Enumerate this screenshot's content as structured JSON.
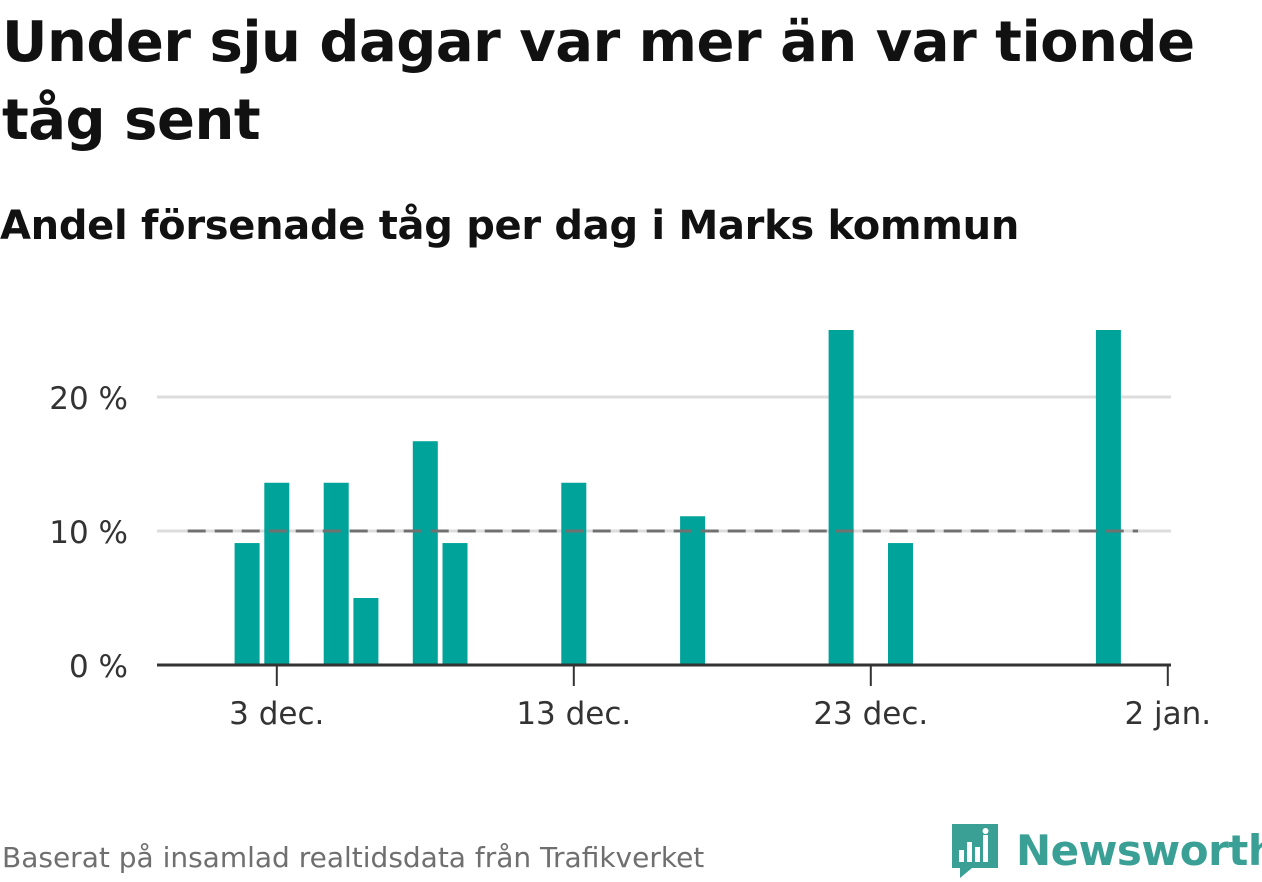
{
  "title": "Under sju dagar var mer än var tionde tåg sent",
  "subtitle": "Andel försenade tåg per dag i Marks kommun",
  "footer": "Baserat på insamlad realtidsdata från Trafikverket",
  "brand": {
    "name": "Newsworthy",
    "icon": "newsworthy-logo-icon"
  },
  "colors": {
    "bar": "#00a39a",
    "grid": "#dddddd",
    "axis": "#333333",
    "reference_line": "#707070",
    "brand": "#3aa095"
  },
  "chart_data": {
    "type": "bar",
    "x_unit": "day",
    "x": [
      "2023-12-02",
      "2023-12-03",
      "2023-12-05",
      "2023-12-06",
      "2023-12-08",
      "2023-12-09",
      "2023-12-13",
      "2023-12-17",
      "2023-12-22",
      "2023-12-24",
      "2023-12-31"
    ],
    "values": [
      9.1,
      13.6,
      13.6,
      5.0,
      16.7,
      9.1,
      13.6,
      11.1,
      25.0,
      9.1,
      25.0
    ],
    "xlim": [
      "2023-11-29",
      "2024-01-02"
    ],
    "x_ticks": [
      {
        "date": "2023-12-03",
        "label": "3 dec."
      },
      {
        "date": "2023-12-13",
        "label": "13 dec."
      },
      {
        "date": "2023-12-23",
        "label": "23 dec."
      },
      {
        "date": "2024-01-02",
        "label": "2 jan."
      }
    ],
    "ylim": [
      0,
      25
    ],
    "y_ticks": [
      {
        "value": 0,
        "label": "0 %"
      },
      {
        "value": 10,
        "label": "10 %"
      },
      {
        "value": 20,
        "label": "20 %"
      }
    ],
    "reference_line": {
      "value": 10,
      "style": "dashed",
      "from": "2023-11-30",
      "to": "2024-01-01"
    },
    "grid": true,
    "legend": "none"
  }
}
